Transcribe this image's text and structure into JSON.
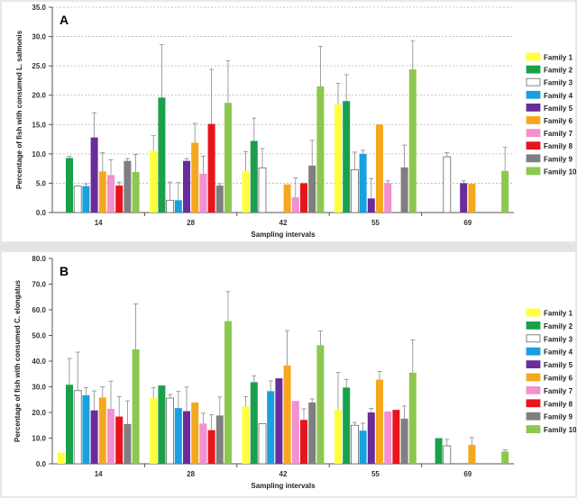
{
  "colors": [
    "#ffff3c",
    "#1aa04b",
    "#ffffff",
    "#1a9fe0",
    "#6a2c9a",
    "#f5a81e",
    "#f48fd0",
    "#e8141c",
    "#7f7f7f",
    "#8cc84f"
  ],
  "chart_data": [
    {
      "type": "bar",
      "panel_label": "A",
      "title": "",
      "xlabel": "Sampling intervals",
      "ylabel": "Percentage of fish with consumed L. salmonis",
      "ylim": [
        0,
        35
      ],
      "yticks": [
        "0.0",
        "5.0",
        "10.0",
        "15.0",
        "20.0",
        "25.0",
        "30.0",
        "35.0"
      ],
      "grid": true,
      "legend_position": "right",
      "categories": [
        "14",
        "28",
        "42",
        "55",
        "69"
      ],
      "series": [
        {
          "name": "Family 1",
          "values": [
            null,
            10.5,
            7.1,
            18.4,
            null
          ],
          "errors": [
            null,
            2.6,
            3.3,
            3.6,
            null
          ]
        },
        {
          "name": "Family 2",
          "values": [
            9.3,
            19.6,
            12.2,
            19.0,
            null
          ],
          "errors": [
            0.3,
            9.0,
            3.9,
            4.5,
            null
          ]
        },
        {
          "name": "Family 3",
          "values": [
            4.5,
            2.1,
            7.6,
            7.3,
            9.5
          ],
          "errors": [
            null,
            3.1,
            3.3,
            3.0,
            0.7
          ]
        },
        {
          "name": "Family 4",
          "values": [
            4.5,
            2.1,
            null,
            10.0,
            null
          ],
          "errors": [
            0.4,
            3.0,
            null,
            0.6,
            null
          ]
        },
        {
          "name": "Family 5",
          "values": [
            12.8,
            8.8,
            null,
            2.4,
            5.0
          ],
          "errors": [
            4.2,
            0.4,
            null,
            3.4,
            0.4
          ]
        },
        {
          "name": "Family 6",
          "values": [
            7.0,
            11.9,
            4.8,
            15.0,
            4.9
          ],
          "errors": [
            3.2,
            3.3,
            null,
            null,
            null
          ]
        },
        {
          "name": "Family 7",
          "values": [
            6.4,
            6.6,
            2.6,
            5.0,
            null
          ],
          "errors": [
            2.6,
            3.0,
            3.3,
            0.4,
            null
          ]
        },
        {
          "name": "Family 8",
          "values": [
            4.6,
            15.1,
            5.0,
            null,
            null
          ],
          "errors": [
            0.6,
            9.3,
            null,
            null,
            null
          ]
        },
        {
          "name": "Family 9",
          "values": [
            8.8,
            4.6,
            8.0,
            7.7,
            null
          ],
          "errors": [
            0.4,
            0.3,
            4.3,
            3.8,
            null
          ]
        },
        {
          "name": "Family 10",
          "values": [
            6.9,
            18.7,
            21.5,
            24.4,
            7.1
          ],
          "errors": [
            3.0,
            7.2,
            6.8,
            4.9,
            4.0
          ]
        }
      ]
    },
    {
      "type": "bar",
      "panel_label": "B",
      "title": "",
      "xlabel": "Sampling intervals",
      "ylabel": "Percentage of fish with consumed C. elongatus",
      "ylim": [
        0,
        80
      ],
      "yticks": [
        "0.0",
        "10.0",
        "20.0",
        "30.0",
        "40.0",
        "50.0",
        "60.0",
        "70.0",
        "80.0"
      ],
      "grid": false,
      "legend_position": "right",
      "categories": [
        "14",
        "28",
        "42",
        "55",
        "69"
      ],
      "series": [
        {
          "name": "Family 1",
          "values": [
            4.3,
            25.6,
            22.3,
            21.1,
            null
          ],
          "errors": [
            null,
            4.1,
            3.9,
            14.5,
            null
          ]
        },
        {
          "name": "Family 2",
          "values": [
            30.8,
            30.5,
            31.8,
            29.7,
            10.0
          ],
          "errors": [
            10.2,
            null,
            2.5,
            3.2,
            null
          ]
        },
        {
          "name": "Family 3",
          "values": [
            28.5,
            25.6,
            15.6,
            15.0,
            7.0
          ],
          "errors": [
            15.0,
            1.4,
            null,
            1.1,
            2.5
          ]
        },
        {
          "name": "Family 4",
          "values": [
            26.7,
            21.7,
            28.3,
            12.9,
            null
          ],
          "errors": [
            3.0,
            6.5,
            4.0,
            2.9,
            null
          ]
        },
        {
          "name": "Family 5",
          "values": [
            20.8,
            20.5,
            33.3,
            20.0,
            null
          ],
          "errors": [
            7.6,
            9.4,
            null,
            1.6,
            null
          ]
        },
        {
          "name": "Family 6",
          "values": [
            25.8,
            23.9,
            38.3,
            32.8,
            7.4
          ],
          "errors": [
            4.2,
            null,
            13.6,
            3.2,
            2.8
          ]
        },
        {
          "name": "Family 7",
          "values": [
            21.4,
            15.7,
            24.5,
            20.4,
            null
          ],
          "errors": [
            10.8,
            4.0,
            null,
            null,
            null
          ]
        },
        {
          "name": "Family 8",
          "values": [
            18.4,
            13.1,
            17.1,
            21.0,
            null
          ],
          "errors": [
            7.8,
            6.0,
            4.3,
            null,
            null
          ]
        },
        {
          "name": "Family 9",
          "values": [
            15.5,
            18.8,
            23.9,
            17.6,
            null
          ],
          "errors": [
            9.0,
            7.2,
            1.4,
            4.9,
            null
          ]
        },
        {
          "name": "Family 10",
          "values": [
            44.6,
            55.6,
            46.2,
            35.5,
            4.8
          ],
          "errors": [
            17.7,
            11.5,
            5.5,
            12.8,
            0.6
          ]
        }
      ]
    }
  ]
}
